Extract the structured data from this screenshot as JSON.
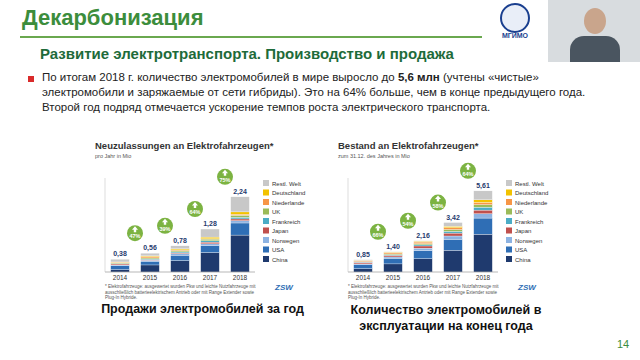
{
  "slide": {
    "title": "Декарбонизация",
    "subtitle": "Развитие электротранспорта. Производство и продажа",
    "bullet": [
      {
        "text": "По итогам 2018 г. количество электромобилей в мире выросло до ",
        "bold": false
      },
      {
        "text": "5,6 млн",
        "bold": true
      },
      {
        "text": " (учтены «чистые» электромобили и заряжаемые от сети гибриды). Это на 64% больше, чем в конце предыдущего года. Второй год подряд отмечается ускорение темпов роста электрического транспорта.",
        "bold": false
      }
    ],
    "captions": [
      "Продажи электромобилей за год",
      "Количество электромобилей в эксплуатации на конец года"
    ],
    "logo": "МГИМО",
    "page": "14"
  },
  "chart_data": [
    {
      "type": "bar",
      "stacked": true,
      "tick_labels": "x",
      "legend": "right",
      "title": "Neuzulassungen an Elektrofahrzeugen*",
      "subtitle": "pro Jahr in Mio",
      "categories": [
        "2014",
        "2015",
        "2016",
        "2017",
        "2018"
      ],
      "ylim": [
        0,
        2.8
      ],
      "series": [
        {
          "name": "China",
          "color": "#1f3a6e",
          "values": [
            0.07,
            0.21,
            0.34,
            0.58,
            1.1
          ]
        },
        {
          "name": "USA",
          "color": "#2f6eb5",
          "values": [
            0.12,
            0.11,
            0.16,
            0.2,
            0.36
          ]
        },
        {
          "name": "Norwegen",
          "color": "#8db3e2",
          "values": [
            0.02,
            0.03,
            0.05,
            0.06,
            0.07
          ]
        },
        {
          "name": "Japan",
          "color": "#c0504d",
          "values": [
            0.03,
            0.02,
            0.02,
            0.05,
            0.05
          ]
        },
        {
          "name": "Frankreich",
          "color": "#4bacc6",
          "values": [
            0.01,
            0.02,
            0.03,
            0.04,
            0.05
          ]
        },
        {
          "name": "UK",
          "color": "#9bbb59",
          "values": [
            0.02,
            0.03,
            0.04,
            0.05,
            0.06
          ]
        },
        {
          "name": "Niederlande",
          "color": "#f79646",
          "values": [
            0.02,
            0.04,
            0.02,
            0.01,
            0.03
          ]
        },
        {
          "name": "Deutschland",
          "color": "#f2c200",
          "values": [
            0.01,
            0.02,
            0.03,
            0.05,
            0.07
          ]
        },
        {
          "name": "Restl. Welt",
          "color": "#c8c8c8",
          "values": [
            0.08,
            0.08,
            0.09,
            0.24,
            0.45
          ]
        }
      ],
      "totals": [
        0.38,
        0.56,
        0.78,
        1.28,
        2.24
      ],
      "total_labels": [
        "0,38",
        "0,56",
        "0,78",
        "1,28",
        "2,24"
      ],
      "growth_labels": [
        null,
        "47%",
        "39%",
        "64%",
        "75%"
      ],
      "footnote": "* Elektrofahrzeuge: ausgewertet wurden Pkw und leichte Nutzfahrzeuge mit ausschließlich batterieelektrischem Antrieb oder mit Range Extender sowie Plug-In Hybride.",
      "source": "ZSW"
    },
    {
      "type": "bar",
      "stacked": true,
      "tick_labels": "x",
      "legend": "right",
      "title": "Bestand an Elektrofahrzeugen*",
      "subtitle": "zum 31.12. des Jahres in Mio",
      "categories": [
        "2014",
        "2015",
        "2016",
        "2017",
        "2018"
      ],
      "ylim": [
        0,
        6.5
      ],
      "series": [
        {
          "name": "China",
          "color": "#1f3a6e",
          "values": [
            0.23,
            0.56,
            0.92,
            1.5,
            2.61
          ]
        },
        {
          "name": "USA",
          "color": "#2f6eb5",
          "values": [
            0.29,
            0.39,
            0.56,
            0.76,
            1.12
          ]
        },
        {
          "name": "Norwegen",
          "color": "#8db3e2",
          "values": [
            0.04,
            0.09,
            0.17,
            0.23,
            0.3
          ]
        },
        {
          "name": "Japan",
          "color": "#c0504d",
          "values": [
            0.1,
            0.11,
            0.15,
            0.2,
            0.25
          ]
        },
        {
          "name": "Frankreich",
          "color": "#4bacc6",
          "values": [
            0.03,
            0.05,
            0.08,
            0.12,
            0.2
          ]
        },
        {
          "name": "UK",
          "color": "#9bbb59",
          "values": [
            0.03,
            0.05,
            0.08,
            0.13,
            0.18
          ]
        },
        {
          "name": "Niederlande",
          "color": "#f79646",
          "values": [
            0.06,
            0.08,
            0.11,
            0.12,
            0.15
          ]
        },
        {
          "name": "Deutschland",
          "color": "#f2c200",
          "values": [
            0.02,
            0.04,
            0.06,
            0.1,
            0.18
          ]
        },
        {
          "name": "Restl. Welt",
          "color": "#c8c8c8",
          "values": [
            0.05,
            0.03,
            0.03,
            0.26,
            0.62
          ]
        }
      ],
      "totals": [
        0.85,
        1.4,
        2.16,
        3.42,
        5.61
      ],
      "total_labels": [
        "0,85",
        "1,40",
        "2,16",
        "3,42",
        "5,61"
      ],
      "growth_labels": [
        null,
        "66%",
        "54%",
        "58%",
        "64%"
      ],
      "footnote": "* Elektrofahrzeuge: ausgewertet wurden Pkw und leichte Nutzfahrzeuge mit ausschließlich batterieelektrischem Antrieb oder mit Range Extender sowie Plug-In Hybride.",
      "source": "ZSW"
    }
  ]
}
